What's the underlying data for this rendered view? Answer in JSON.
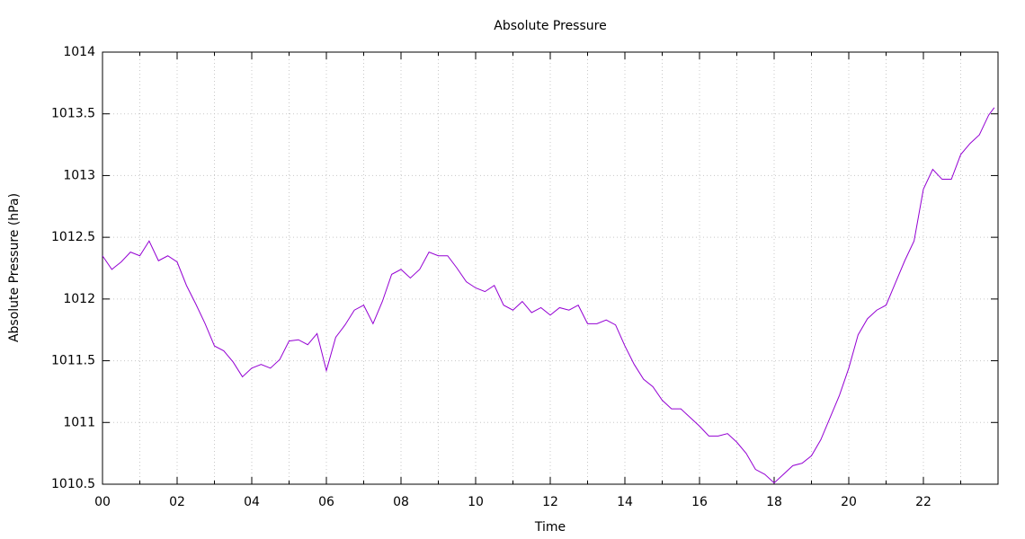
{
  "chart_data": {
    "type": "line",
    "title": "Absolute Pressure",
    "x_label": "Time",
    "y_label": "Absolute Pressure (hPa)",
    "x": [
      0,
      0.25,
      0.5,
      0.75,
      1,
      1.25,
      1.5,
      1.75,
      2,
      2.25,
      2.5,
      2.75,
      3,
      3.25,
      3.5,
      3.75,
      4,
      4.25,
      4.5,
      4.75,
      5,
      5.25,
      5.5,
      5.75,
      6,
      6.25,
      6.5,
      6.75,
      7,
      7.25,
      7.5,
      7.75,
      8,
      8.25,
      8.5,
      8.75,
      9,
      9.25,
      9.5,
      9.75,
      10,
      10.25,
      10.5,
      10.75,
      11,
      11.25,
      11.5,
      11.75,
      12,
      12.25,
      12.5,
      12.75,
      13,
      13.25,
      13.5,
      13.75,
      14,
      14.25,
      14.5,
      14.75,
      15,
      15.25,
      15.5,
      15.75,
      16,
      16.25,
      16.5,
      16.75,
      17,
      17.25,
      17.5,
      17.75,
      18,
      18.25,
      18.5,
      18.75,
      19,
      19.25,
      19.5,
      19.75,
      20,
      20.25,
      20.5,
      20.75,
      21,
      21.25,
      21.5,
      21.75,
      22,
      22.25,
      22.5,
      22.75,
      23,
      23.25,
      23.5,
      23.75,
      23.9
    ],
    "series": [
      {
        "name": "Absolute Pressure",
        "color": "#9400d3",
        "values": [
          1012.35,
          1012.24,
          1012.3,
          1012.38,
          1012.35,
          1012.47,
          1012.31,
          1012.35,
          1012.3,
          1012.11,
          1011.96,
          1011.8,
          1011.62,
          1011.58,
          1011.49,
          1011.37,
          1011.44,
          1011.47,
          1011.44,
          1011.51,
          1011.66,
          1011.67,
          1011.63,
          1011.72,
          1011.42,
          1011.69,
          1011.79,
          1011.91,
          1011.95,
          1011.8,
          1011.98,
          1012.2,
          1012.24,
          1012.17,
          1012.24,
          1012.38,
          1012.35,
          1012.35,
          1012.25,
          1012.14,
          1012.09,
          1012.06,
          1012.11,
          1011.95,
          1011.91,
          1011.98,
          1011.89,
          1011.93,
          1011.87,
          1011.93,
          1011.91,
          1011.95,
          1011.8,
          1011.8,
          1011.83,
          1011.79,
          1011.62,
          1011.47,
          1011.35,
          1011.29,
          1011.18,
          1011.11,
          1011.11,
          1011.04,
          1010.97,
          1010.89,
          1010.89,
          1010.91,
          1010.84,
          1010.75,
          1010.62,
          1010.58,
          1010.51,
          1010.58,
          1010.65,
          1010.67,
          1010.73,
          1010.86,
          1011.04,
          1011.22,
          1011.44,
          1011.71,
          1011.84,
          1011.91,
          1011.95,
          1012.13,
          1012.31,
          1012.47,
          1012.89,
          1013.05,
          1012.97,
          1012.97,
          1013.17,
          1013.26,
          1013.33,
          1013.49,
          1013.55
        ]
      }
    ],
    "xlim": [
      0,
      24
    ],
    "ylim": [
      1010.5,
      1014
    ],
    "xticks": [
      {
        "value": 0,
        "label": "00"
      },
      {
        "value": 2,
        "label": "02"
      },
      {
        "value": 4,
        "label": "04"
      },
      {
        "value": 6,
        "label": "06"
      },
      {
        "value": 8,
        "label": "08"
      },
      {
        "value": 10,
        "label": "10"
      },
      {
        "value": 12,
        "label": "12"
      },
      {
        "value": 14,
        "label": "14"
      },
      {
        "value": 16,
        "label": "16"
      },
      {
        "value": 18,
        "label": "18"
      },
      {
        "value": 20,
        "label": "20"
      },
      {
        "value": 22,
        "label": "22"
      }
    ],
    "xminorticks": [
      1,
      3,
      5,
      7,
      9,
      11,
      13,
      15,
      17,
      19,
      21,
      23
    ],
    "yticks": [
      1010.5,
      1011,
      1011.5,
      1012,
      1012.5,
      1013,
      1013.5,
      1014
    ],
    "grid": true
  }
}
